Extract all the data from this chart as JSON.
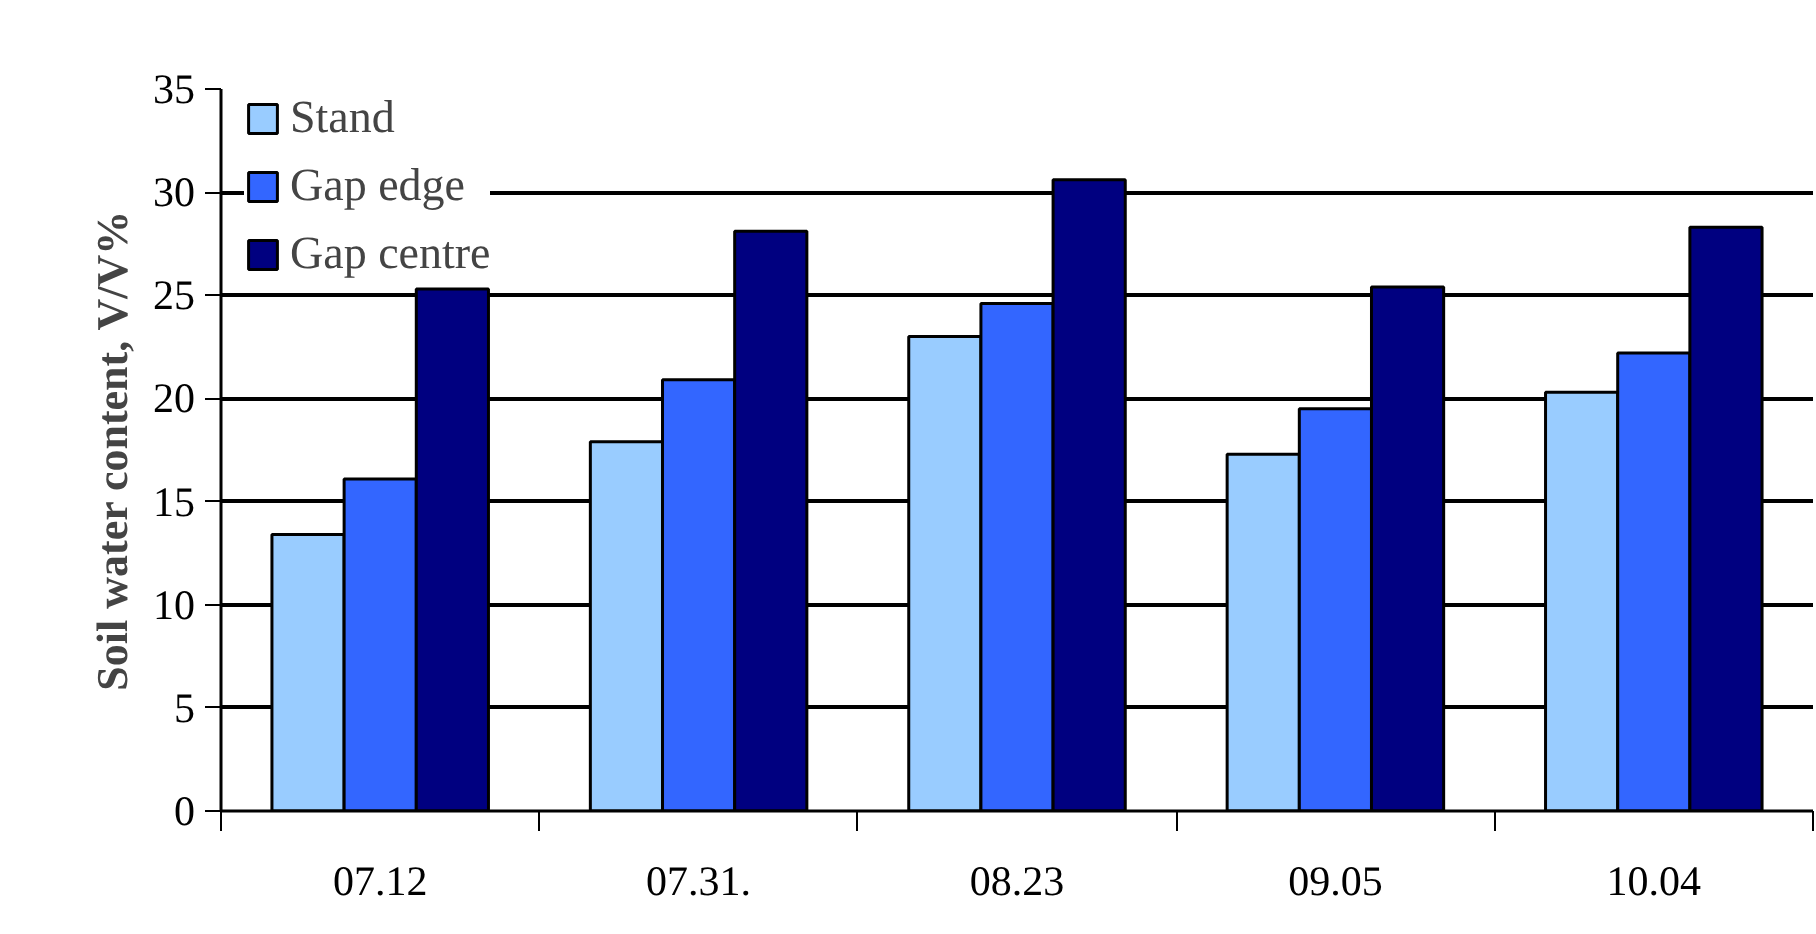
{
  "chart_data": {
    "type": "bar",
    "ylabel": "Soil water content, V/V%",
    "categories": [
      "07.12",
      "07.31.",
      "08.23",
      "09.05",
      "10.04"
    ],
    "series": [
      {
        "name": "Stand",
        "color": "#99ccff",
        "values": [
          13.4,
          17.9,
          23.0,
          17.3,
          20.3
        ]
      },
      {
        "name": "Gap edge",
        "color": "#3366ff",
        "values": [
          16.1,
          20.9,
          24.6,
          19.5,
          22.2
        ]
      },
      {
        "name": "Gap centre",
        "color": "#000080",
        "values": [
          25.3,
          28.1,
          30.6,
          25.4,
          28.3
        ]
      }
    ],
    "ylim": [
      0,
      35
    ],
    "yticks": [
      0,
      5,
      10,
      15,
      20,
      25,
      30,
      35
    ],
    "grid": "y",
    "legend": "top left"
  }
}
